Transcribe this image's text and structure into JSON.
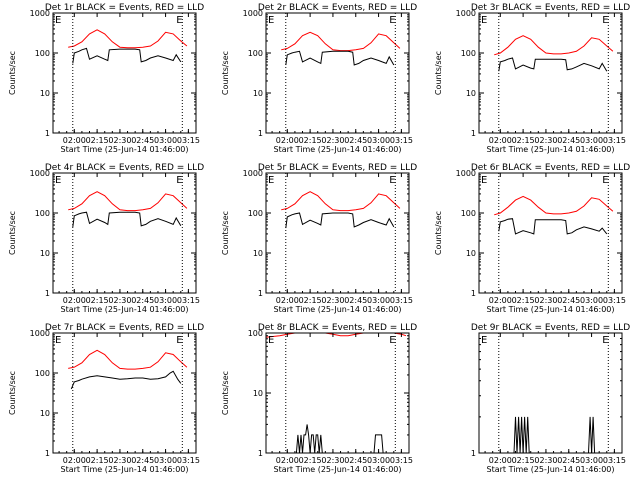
{
  "chart_data": [
    {
      "type": "line",
      "title": "Det 1r BLACK = Events, RED = LLD",
      "xlabel": "Start Time (25-Jun-14 01:46:00)",
      "ylabel": "Counts/sec",
      "y_scale": "log",
      "ylim": [
        1,
        1000
      ],
      "x_tick_labels": [
        "02:00",
        "02:15",
        "02:30",
        "02:45",
        "03:00",
        "03:15"
      ],
      "y_tick_labels": [
        "1",
        "10",
        "100",
        "1000"
      ],
      "markers": [
        "E",
        "E"
      ],
      "series": [
        {
          "color": "#ff0000",
          "x": [
            "01:56",
            "02:00",
            "02:05",
            "02:10",
            "02:15",
            "02:20",
            "02:25",
            "02:30",
            "02:35",
            "02:40",
            "02:45",
            "02:50",
            "02:55",
            "03:00",
            "03:05",
            "03:10",
            "03:14"
          ],
          "values": [
            140,
            150,
            190,
            300,
            380,
            300,
            190,
            140,
            135,
            135,
            140,
            150,
            200,
            330,
            300,
            200,
            150
          ]
        },
        {
          "color": "#000000",
          "x": [
            "01:59",
            "02:00",
            "02:03",
            "02:05",
            "02:08",
            "02:10",
            "02:15",
            "02:20",
            "02:22",
            "02:23",
            "02:30",
            "02:35",
            "02:40",
            "02:43",
            "02:44",
            "02:47",
            "02:50",
            "02:55",
            "03:00",
            "03:05",
            "03:07",
            "03:10"
          ],
          "values": [
            55,
            100,
            110,
            120,
            130,
            70,
            85,
            70,
            65,
            120,
            125,
            125,
            125,
            120,
            60,
            65,
            75,
            85,
            75,
            65,
            90,
            60
          ]
        }
      ]
    },
    {
      "type": "line",
      "title": "Det 2r BLACK = Events, RED = LLD",
      "xlabel": "Start Time (25-Jun-14 01:46:00)",
      "ylabel": "Counts/sec",
      "y_scale": "log",
      "ylim": [
        1,
        1000
      ],
      "x_tick_labels": [
        "02:00",
        "02:15",
        "02:30",
        "02:45",
        "03:00",
        "03:15"
      ],
      "y_tick_labels": [
        "1",
        "10",
        "100",
        "1000"
      ],
      "markers": [
        "E",
        "E"
      ],
      "series": [
        {
          "color": "#ff0000",
          "x": [
            "01:56",
            "02:00",
            "02:05",
            "02:10",
            "02:15",
            "02:20",
            "02:25",
            "02:30",
            "02:35",
            "02:40",
            "02:45",
            "02:50",
            "02:55",
            "03:00",
            "03:05",
            "03:10",
            "03:14"
          ],
          "values": [
            120,
            130,
            170,
            270,
            330,
            270,
            170,
            120,
            115,
            115,
            120,
            130,
            180,
            300,
            270,
            180,
            130
          ]
        },
        {
          "color": "#000000",
          "x": [
            "01:59",
            "02:00",
            "02:03",
            "02:05",
            "02:08",
            "02:10",
            "02:15",
            "02:20",
            "02:22",
            "02:23",
            "02:30",
            "02:35",
            "02:40",
            "02:43",
            "02:44",
            "02:47",
            "02:50",
            "02:55",
            "03:00",
            "03:05",
            "03:07",
            "03:10"
          ],
          "values": [
            50,
            90,
            100,
            105,
            110,
            60,
            75,
            60,
            55,
            105,
            110,
            110,
            110,
            105,
            50,
            55,
            65,
            75,
            65,
            55,
            80,
            50
          ]
        }
      ]
    },
    {
      "type": "line",
      "title": "Det 3r BLACK = Events, RED = LLD",
      "xlabel": "Start Time (25-Jun-14 01:46:00)",
      "ylabel": "Counts/sec",
      "y_scale": "log",
      "ylim": [
        1,
        1000
      ],
      "x_tick_labels": [
        "02:00",
        "02:15",
        "02:30",
        "02:45",
        "03:00",
        "03:15"
      ],
      "y_tick_labels": [
        "1",
        "10",
        "100",
        "1000"
      ],
      "markers": [
        "E",
        "E"
      ],
      "series": [
        {
          "color": "#ff0000",
          "x": [
            "01:56",
            "02:00",
            "02:05",
            "02:10",
            "02:15",
            "02:20",
            "02:25",
            "02:30",
            "02:35",
            "02:40",
            "02:45",
            "02:50",
            "02:55",
            "03:00",
            "03:05",
            "03:10",
            "03:14"
          ],
          "values": [
            90,
            100,
            140,
            220,
            270,
            220,
            140,
            100,
            95,
            95,
            100,
            110,
            150,
            240,
            220,
            150,
            110
          ]
        },
        {
          "color": "#000000",
          "x": [
            "01:59",
            "02:00",
            "02:03",
            "02:05",
            "02:08",
            "02:10",
            "02:15",
            "02:20",
            "02:22",
            "02:23",
            "02:30",
            "02:35",
            "02:40",
            "02:43",
            "02:44",
            "02:47",
            "02:50",
            "02:55",
            "03:00",
            "03:05",
            "03:07",
            "03:10"
          ],
          "values": [
            35,
            60,
            65,
            70,
            75,
            40,
            50,
            42,
            40,
            70,
            70,
            70,
            70,
            68,
            38,
            40,
            45,
            55,
            48,
            40,
            55,
            35
          ]
        }
      ]
    },
    {
      "type": "line",
      "title": "Det 4r BLACK = Events, RED = LLD",
      "xlabel": "Start Time (25-Jun-14 01:46:00)",
      "ylabel": "Counts/sec",
      "y_scale": "log",
      "ylim": [
        1,
        1000
      ],
      "x_tick_labels": [
        "02:00",
        "02:15",
        "02:30",
        "02:45",
        "03:00",
        "03:15"
      ],
      "y_tick_labels": [
        "1",
        "10",
        "100",
        "1000"
      ],
      "markers": [
        "E",
        "E"
      ],
      "series": [
        {
          "color": "#ff0000",
          "x": [
            "01:56",
            "02:00",
            "02:05",
            "02:10",
            "02:15",
            "02:20",
            "02:25",
            "02:30",
            "02:35",
            "02:40",
            "02:45",
            "02:50",
            "02:55",
            "03:00",
            "03:05",
            "03:10",
            "03:14"
          ],
          "values": [
            120,
            130,
            170,
            270,
            340,
            270,
            170,
            120,
            115,
            115,
            120,
            130,
            180,
            300,
            270,
            180,
            130
          ]
        },
        {
          "color": "#000000",
          "x": [
            "01:59",
            "02:00",
            "02:03",
            "02:05",
            "02:08",
            "02:10",
            "02:15",
            "02:20",
            "02:22",
            "02:23",
            "02:30",
            "02:35",
            "02:40",
            "02:43",
            "02:44",
            "02:47",
            "02:50",
            "02:55",
            "03:00",
            "03:05",
            "03:07",
            "03:10"
          ],
          "values": [
            45,
            85,
            95,
            100,
            105,
            55,
            70,
            58,
            52,
            100,
            105,
            105,
            105,
            100,
            48,
            52,
            62,
            72,
            62,
            52,
            75,
            48
          ]
        }
      ]
    },
    {
      "type": "line",
      "title": "Det 5r BLACK = Events, RED = LLD",
      "xlabel": "Start Time (25-Jun-14 01:46:00)",
      "ylabel": "Counts/sec",
      "y_scale": "log",
      "ylim": [
        1,
        1000
      ],
      "x_tick_labels": [
        "02:00",
        "02:15",
        "02:30",
        "02:45",
        "03:00",
        "03:15"
      ],
      "y_tick_labels": [
        "1",
        "10",
        "100",
        "1000"
      ],
      "markers": [
        "E",
        "E"
      ],
      "series": [
        {
          "color": "#ff0000",
          "x": [
            "01:56",
            "02:00",
            "02:05",
            "02:10",
            "02:15",
            "02:20",
            "02:25",
            "02:30",
            "02:35",
            "02:40",
            "02:45",
            "02:50",
            "02:55",
            "03:00",
            "03:05",
            "03:10",
            "03:14"
          ],
          "values": [
            120,
            130,
            170,
            270,
            340,
            270,
            170,
            120,
            115,
            115,
            120,
            130,
            180,
            300,
            270,
            180,
            130
          ]
        },
        {
          "color": "#000000",
          "x": [
            "01:59",
            "02:00",
            "02:03",
            "02:05",
            "02:08",
            "02:10",
            "02:15",
            "02:20",
            "02:22",
            "02:23",
            "02:30",
            "02:35",
            "02:40",
            "02:43",
            "02:44",
            "02:47",
            "02:50",
            "02:55",
            "03:00",
            "03:05",
            "03:07",
            "03:10"
          ],
          "values": [
            42,
            80,
            90,
            95,
            100,
            52,
            66,
            55,
            50,
            95,
            100,
            100,
            100,
            95,
            45,
            50,
            58,
            68,
            58,
            50,
            72,
            45
          ]
        }
      ]
    },
    {
      "type": "line",
      "title": "Det 6r BLACK = Events, RED = LLD",
      "xlabel": "Start Time (25-Jun-14 01:46:00)",
      "ylabel": "Counts/sec",
      "y_scale": "log",
      "ylim": [
        1,
        1000
      ],
      "x_tick_labels": [
        "02:00",
        "02:15",
        "02:30",
        "02:45",
        "03:00",
        "03:15"
      ],
      "y_tick_labels": [
        "1",
        "10",
        "100",
        "1000"
      ],
      "markers": [
        "E",
        "E"
      ],
      "series": [
        {
          "color": "#ff0000",
          "x": [
            "01:56",
            "02:00",
            "02:05",
            "02:10",
            "02:15",
            "02:20",
            "02:25",
            "02:30",
            "02:35",
            "02:40",
            "02:45",
            "02:50",
            "02:55",
            "03:00",
            "03:05",
            "03:10",
            "03:14"
          ],
          "values": [
            90,
            100,
            140,
            210,
            260,
            210,
            140,
            100,
            95,
            95,
            100,
            110,
            150,
            240,
            220,
            150,
            110
          ]
        },
        {
          "color": "#000000",
          "x": [
            "01:59",
            "02:00",
            "02:03",
            "02:05",
            "02:08",
            "02:10",
            "02:15",
            "02:20",
            "02:22",
            "02:23",
            "02:30",
            "02:35",
            "02:40",
            "02:43",
            "02:44",
            "02:47",
            "02:50",
            "02:55",
            "03:00",
            "03:05",
            "03:07",
            "03:10"
          ],
          "values": [
            35,
            60,
            65,
            70,
            72,
            30,
            36,
            32,
            30,
            68,
            68,
            68,
            68,
            65,
            30,
            32,
            38,
            45,
            40,
            35,
            42,
            30
          ]
        }
      ]
    },
    {
      "type": "line",
      "title": "Det 7r BLACK = Events, RED = LLD",
      "xlabel": "Start Time (25-Jun-14 01:46:00)",
      "ylabel": "Counts/sec",
      "y_scale": "log",
      "ylim": [
        1,
        1000
      ],
      "x_tick_labels": [
        "02:00",
        "02:15",
        "02:30",
        "02:45",
        "03:00",
        "03:15"
      ],
      "y_tick_labels": [
        "1",
        "10",
        "100",
        "1000"
      ],
      "markers": [
        "E",
        "E"
      ],
      "series": [
        {
          "color": "#ff0000",
          "x": [
            "01:56",
            "02:00",
            "02:05",
            "02:10",
            "02:15",
            "02:20",
            "02:25",
            "02:30",
            "02:35",
            "02:40",
            "02:45",
            "02:50",
            "02:55",
            "03:00",
            "03:05",
            "03:10",
            "03:14"
          ],
          "values": [
            130,
            140,
            180,
            290,
            370,
            290,
            180,
            130,
            125,
            125,
            130,
            140,
            190,
            320,
            290,
            190,
            140
          ]
        },
        {
          "color": "#000000",
          "x": [
            "01:58",
            "02:00",
            "02:03",
            "02:05",
            "02:10",
            "02:15",
            "02:20",
            "02:25",
            "02:30",
            "02:35",
            "02:40",
            "02:45",
            "02:50",
            "02:55",
            "03:00",
            "03:03",
            "03:05",
            "03:08",
            "03:10"
          ],
          "values": [
            40,
            60,
            65,
            70,
            80,
            85,
            80,
            75,
            70,
            72,
            75,
            75,
            70,
            72,
            80,
            100,
            110,
            70,
            55
          ]
        }
      ]
    },
    {
      "type": "line",
      "title": "Det 8r BLACK = Events, RED = LLD",
      "xlabel": "Start Time (25-Jun-14 01:46:00)",
      "ylabel": "Counts/sec",
      "y_scale": "log",
      "ylim": [
        1,
        100
      ],
      "x_tick_labels": [
        "02:00",
        "02:15",
        "02:30",
        "02:45",
        "03:00",
        "03:15"
      ],
      "y_tick_labels": [
        "1",
        "10",
        "100"
      ],
      "markers": [
        "E",
        "E"
      ],
      "series": [
        {
          "color": "#ff0000",
          "x": [
            "01:46",
            "01:55",
            "02:00",
            "02:05",
            "02:10",
            "02:15",
            "02:20",
            "02:25",
            "02:30",
            "02:35",
            "02:40",
            "02:45",
            "02:50",
            "02:55",
            "03:00",
            "03:05",
            "03:10",
            "03:15",
            "03:18"
          ],
          "values": [
            85,
            90,
            95,
            100,
            100,
            100,
            100,
            100,
            95,
            90,
            90,
            95,
            100,
            100,
            100,
            100,
            100,
            95,
            90
          ]
        },
        {
          "color": "#000000",
          "x": [
            "02:06",
            "02:07",
            "02:08",
            "02:09",
            "02:10",
            "02:11",
            "02:12",
            "02:13",
            "02:14",
            "02:15",
            "02:16",
            "02:17",
            "02:18",
            "02:19",
            "02:20",
            "02:21",
            "02:22",
            "02:23",
            "02:57",
            "02:58",
            "02:59",
            "03:00",
            "03:01",
            "03:02",
            "03:03"
          ],
          "values": [
            1,
            2,
            1,
            2,
            1,
            2,
            2,
            3,
            2,
            1,
            2,
            2,
            1,
            2,
            2,
            1,
            2,
            1,
            1,
            2,
            2,
            2,
            2,
            2,
            1
          ]
        }
      ]
    },
    {
      "type": "line",
      "title": "Det 9r BLACK = Events, RED = LLD",
      "xlabel": "Start Time (25-Jun-14 01:46:00)",
      "ylabel": "",
      "y_scale": "log",
      "ylim": [
        1,
        10
      ],
      "x_tick_labels": [
        "02:00",
        "02:15",
        "02:30",
        "02:45",
        "03:00",
        "03:15"
      ],
      "y_tick_labels": [
        "1"
      ],
      "markers": [
        "E",
        "E"
      ],
      "series": [
        {
          "color": "#000000",
          "x": [
            "02:09",
            "02:10",
            "02:11",
            "02:12",
            "02:13",
            "02:14",
            "02:15",
            "02:16",
            "02:17",
            "02:18",
            "02:19",
            "02:58",
            "02:59",
            "03:00",
            "03:01",
            "03:02"
          ],
          "values": [
            1,
            2,
            1,
            2,
            1,
            2,
            1,
            2,
            1,
            2,
            1,
            1,
            2,
            1,
            2,
            1
          ]
        }
      ]
    }
  ]
}
